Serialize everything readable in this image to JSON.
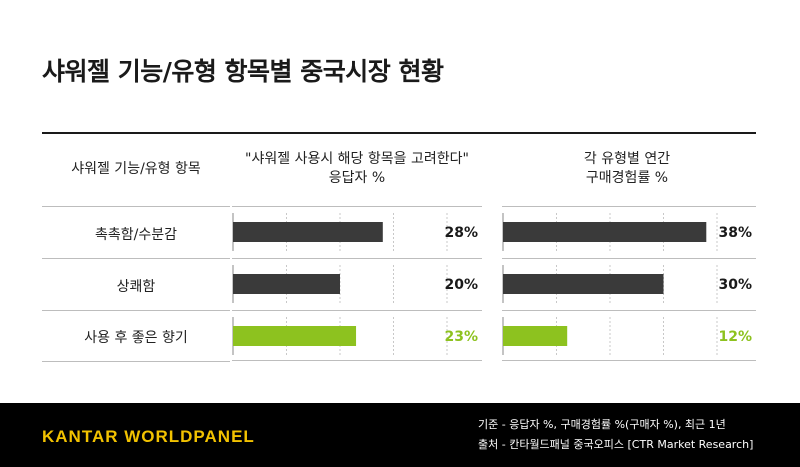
{
  "title": "샤워젤 기능/유형 항목별 중국시장 현황",
  "headers": {
    "col1": "샤워젤 기능/유형 항목",
    "col2_line1": "\"샤워젤 사용시 해당 항목을 고려한다\"",
    "col2_line2": "응답자 %",
    "col3_line1": "각 유형별 연간",
    "col3_line2": "구매경험률 %"
  },
  "chart_data": [
    {
      "type": "bar",
      "orientation": "horizontal",
      "categories": [
        "촉촉함/수분감",
        "상쾌함",
        "사용 후 좋은 향기"
      ],
      "values": [
        28,
        20,
        23
      ],
      "value_labels": [
        "28%",
        "20%",
        "23%"
      ],
      "xlim": [
        0,
        40
      ],
      "grid": true,
      "colors": [
        "#3a3a3a",
        "#3a3a3a",
        "#8dc21f"
      ]
    },
    {
      "type": "bar",
      "orientation": "horizontal",
      "categories": [
        "촉촉함/수분감",
        "상쾌함",
        "사용 후 좋은 향기"
      ],
      "values": [
        38,
        30,
        12
      ],
      "value_labels": [
        "38%",
        "30%",
        "12%"
      ],
      "xlim": [
        0,
        40
      ],
      "grid": true,
      "colors": [
        "#3a3a3a",
        "#3a3a3a",
        "#8dc21f"
      ]
    }
  ],
  "colors": {
    "dark_bar": "#3a3a3a",
    "highlight": "#8dc21f",
    "logo": "#f2c200"
  },
  "footer": {
    "logo": "KANTAR WORLDPANEL",
    "note1": "기준 - 응답자 %, 구매경험률 %(구매자 %), 최근 1년",
    "note2": "출처 - 칸타월드패널 중국오피스 [CTR Market Research]"
  }
}
